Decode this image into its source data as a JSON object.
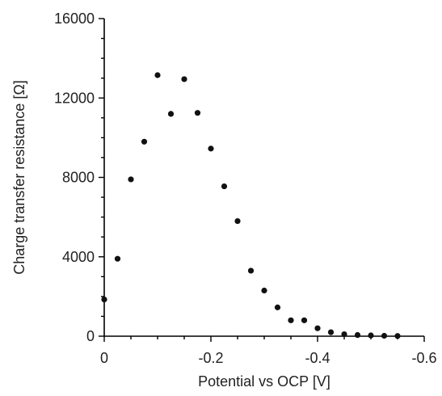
{
  "chart_data": {
    "type": "scatter",
    "xlabel": "Potential vs OCP [V]",
    "ylabel": "Charge transfer resistance [Ω]",
    "xlim": [
      0,
      -0.6
    ],
    "ylim": [
      0,
      16000
    ],
    "x_ticks": [
      0,
      -0.2,
      -0.4,
      -0.6
    ],
    "x_tick_labels": [
      "0",
      "-0.2",
      "-0.4",
      "-0.6"
    ],
    "y_ticks": [
      0,
      4000,
      8000,
      12000,
      16000
    ],
    "y_tick_labels": [
      "0",
      "4000",
      "8000",
      "12000",
      "16000"
    ],
    "grid": false,
    "marker_color": "#111111",
    "series": [
      {
        "points": [
          {
            "x": 0.0,
            "y": 1850
          },
          {
            "x": -0.025,
            "y": 3900
          },
          {
            "x": -0.05,
            "y": 7900
          },
          {
            "x": -0.075,
            "y": 9800
          },
          {
            "x": -0.1,
            "y": 13150
          },
          {
            "x": -0.125,
            "y": 11200
          },
          {
            "x": -0.15,
            "y": 12950
          },
          {
            "x": -0.175,
            "y": 11250
          },
          {
            "x": -0.2,
            "y": 9450
          },
          {
            "x": -0.225,
            "y": 7550
          },
          {
            "x": -0.25,
            "y": 5800
          },
          {
            "x": -0.275,
            "y": 3300
          },
          {
            "x": -0.3,
            "y": 2300
          },
          {
            "x": -0.325,
            "y": 1450
          },
          {
            "x": -0.35,
            "y": 800
          },
          {
            "x": -0.375,
            "y": 800
          },
          {
            "x": -0.4,
            "y": 400
          },
          {
            "x": -0.425,
            "y": 200
          },
          {
            "x": -0.45,
            "y": 100
          },
          {
            "x": -0.475,
            "y": 60
          },
          {
            "x": -0.5,
            "y": 40
          },
          {
            "x": -0.525,
            "y": 20
          },
          {
            "x": -0.55,
            "y": 10
          }
        ]
      }
    ]
  }
}
